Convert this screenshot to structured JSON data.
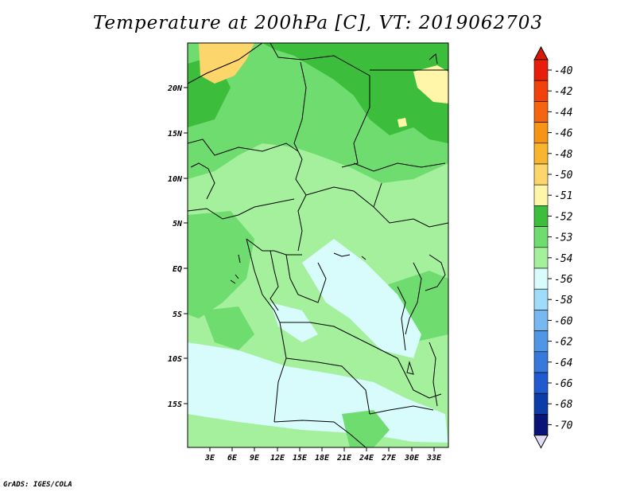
{
  "title": "Temperature at 200hPa [C], VT: 2019062703",
  "credit": "GrADS: IGES/COLA",
  "map": {
    "region": "Central Africa",
    "lat_range": [
      -20,
      25
    ],
    "lon_range": [
      0,
      35
    ],
    "lat_ticks": [
      "20N",
      "15N",
      "10N",
      "5N",
      "EQ",
      "5S",
      "10S",
      "15S"
    ],
    "lon_ticks": [
      "3E",
      "6E",
      "9E",
      "12E",
      "15E",
      "18E",
      "21E",
      "24E",
      "27E",
      "30E",
      "33E"
    ]
  },
  "colorbar": {
    "labels": [
      "-40",
      "-42",
      "-44",
      "-46",
      "-48",
      "-50",
      "-51",
      "-52",
      "-53",
      "-54",
      "-56",
      "-58",
      "-60",
      "-62",
      "-64",
      "-66",
      "-68",
      "-70"
    ],
    "colors": [
      "#e81e0a",
      "#f0420a",
      "#f5640f",
      "#f79416",
      "#f9b52d",
      "#fcd66b",
      "#fff6aa",
      "#3cbe3c",
      "#6edc6e",
      "#a4f09c",
      "#d8fcfc",
      "#a0dcfa",
      "#78b8f0",
      "#5096e6",
      "#3778dc",
      "#1f5ad0",
      "#0c3ca8",
      "#0a1478"
    ],
    "top_cap": "#d71a06",
    "bottom_cap": "#e0dcf8"
  }
}
